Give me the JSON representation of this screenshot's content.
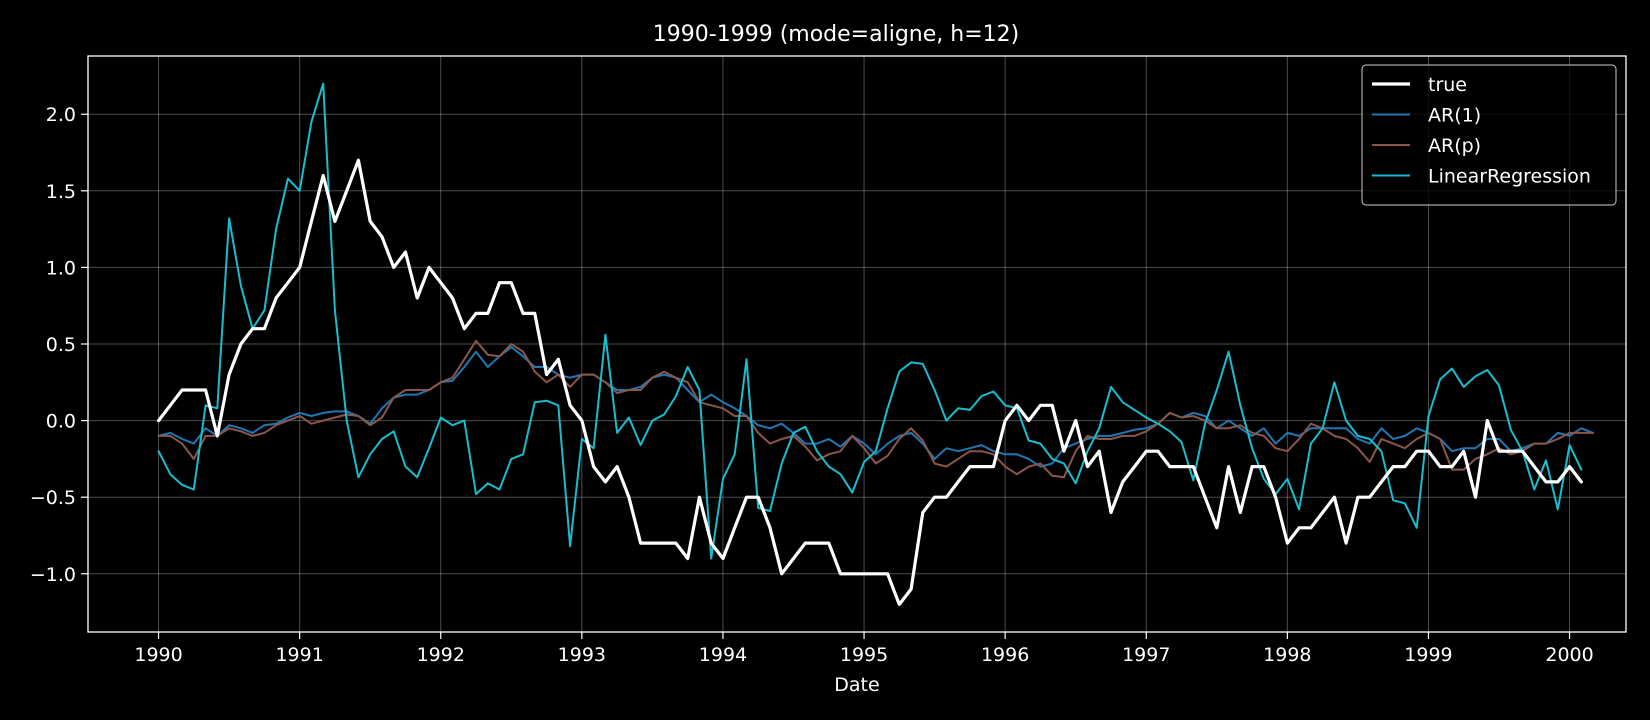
{
  "chart_data": {
    "type": "line",
    "title": "1990-1999 (mode=aligne, h=12)",
    "xlabel": "Date",
    "ylabel": "",
    "xlim": [
      1989.5,
      2000.4
    ],
    "ylim": [
      -1.38,
      2.38
    ],
    "x_ticks": [
      1990,
      1991,
      1992,
      1993,
      1994,
      1995,
      1996,
      1997,
      1998,
      1999,
      2000
    ],
    "x_tick_labels": [
      "1990",
      "1991",
      "1992",
      "1993",
      "1994",
      "1995",
      "1996",
      "1997",
      "1998",
      "1999",
      "2000"
    ],
    "y_ticks": [
      -1.0,
      -0.5,
      0.0,
      0.5,
      1.0,
      1.5,
      2.0
    ],
    "y_tick_labels": [
      "−1.0",
      "−0.5",
      "0.0",
      "0.5",
      "1.0",
      "1.5",
      "2.0"
    ],
    "grid": true,
    "legend_position": "top-right",
    "x_start": 1990,
    "x_step_months": 1,
    "series": [
      {
        "name": "true",
        "color": "#ffffff",
        "values": [
          0.0,
          0.1,
          0.2,
          0.2,
          0.2,
          -0.1,
          0.3,
          0.5,
          0.6,
          0.6,
          0.8,
          0.9,
          1.0,
          1.3,
          1.6,
          1.3,
          1.5,
          1.7,
          1.3,
          1.2,
          1.0,
          1.1,
          0.8,
          1.0,
          0.9,
          0.8,
          0.6,
          0.7,
          0.7,
          0.9,
          0.9,
          0.7,
          0.7,
          0.3,
          0.4,
          0.1,
          0.0,
          -0.3,
          -0.4,
          -0.3,
          -0.5,
          -0.8,
          -0.8,
          -0.8,
          -0.8,
          -0.9,
          -0.5,
          -0.8,
          -0.9,
          -0.7,
          -0.5,
          -0.5,
          -0.7,
          -1.0,
          -0.9,
          -0.8,
          -0.8,
          -0.8,
          -1.0,
          -1.0,
          -1.0,
          -1.0,
          -1.0,
          -1.2,
          -1.1,
          -0.6,
          -0.5,
          -0.5,
          -0.4,
          -0.3,
          -0.3,
          -0.3,
          0.0,
          0.1,
          0.0,
          0.1,
          0.1,
          -0.2,
          0.0,
          -0.3,
          -0.2,
          -0.6,
          -0.4,
          -0.3,
          -0.2,
          -0.2,
          -0.3,
          -0.3,
          -0.3,
          -0.5,
          -0.7,
          -0.3,
          -0.6,
          -0.3,
          -0.3,
          -0.5,
          -0.8,
          -0.7,
          -0.7,
          -0.6,
          -0.5,
          -0.8,
          -0.5,
          -0.5,
          -0.4,
          -0.3,
          -0.3,
          -0.2,
          -0.2,
          -0.3,
          -0.3,
          -0.2,
          -0.5,
          0.0,
          -0.2,
          -0.2,
          -0.2,
          -0.3,
          -0.4,
          -0.4,
          -0.3,
          -0.4
        ]
      },
      {
        "name": "AR(1)",
        "color": "#1f77b4",
        "values": [
          -0.1,
          -0.08,
          -0.12,
          -0.15,
          -0.05,
          -0.1,
          -0.03,
          -0.05,
          -0.08,
          -0.03,
          -0.02,
          0.02,
          0.05,
          0.03,
          0.05,
          0.06,
          0.06,
          0.03,
          -0.02,
          0.08,
          0.15,
          0.17,
          0.17,
          0.2,
          0.25,
          0.26,
          0.35,
          0.45,
          0.35,
          0.42,
          0.48,
          0.42,
          0.35,
          0.35,
          0.3,
          0.28,
          0.3,
          0.3,
          0.25,
          0.2,
          0.2,
          0.22,
          0.28,
          0.3,
          0.28,
          0.2,
          0.12,
          0.17,
          0.12,
          0.08,
          0.03,
          -0.03,
          -0.05,
          -0.02,
          -0.08,
          -0.15,
          -0.15,
          -0.12,
          -0.17,
          -0.1,
          -0.15,
          -0.22,
          -0.15,
          -0.1,
          -0.08,
          -0.15,
          -0.25,
          -0.18,
          -0.2,
          -0.18,
          -0.16,
          -0.2,
          -0.22,
          -0.22,
          -0.25,
          -0.3,
          -0.28,
          -0.18,
          -0.15,
          -0.12,
          -0.1,
          -0.1,
          -0.08,
          -0.06,
          -0.05,
          -0.02,
          0.05,
          0.02,
          0.05,
          0.03,
          -0.05,
          0.0,
          -0.05,
          -0.1,
          -0.05,
          -0.15,
          -0.08,
          -0.1,
          -0.05,
          -0.05,
          -0.05,
          -0.05,
          -0.12,
          -0.15,
          -0.05,
          -0.12,
          -0.1,
          -0.05,
          -0.08,
          -0.12,
          -0.2,
          -0.18,
          -0.18,
          -0.12,
          -0.12,
          -0.2,
          -0.18,
          -0.15,
          -0.15,
          -0.08,
          -0.1,
          -0.05,
          -0.08
        ]
      },
      {
        "name": "AR(p)",
        "color": "#8c564b",
        "values": [
          -0.1,
          -0.1,
          -0.15,
          -0.25,
          -0.1,
          -0.1,
          -0.05,
          -0.07,
          -0.1,
          -0.08,
          -0.03,
          0.0,
          0.03,
          -0.02,
          0.0,
          0.02,
          0.04,
          0.03,
          -0.03,
          0.02,
          0.15,
          0.2,
          0.2,
          0.2,
          0.25,
          0.28,
          0.4,
          0.52,
          0.43,
          0.42,
          0.5,
          0.45,
          0.32,
          0.25,
          0.3,
          0.22,
          0.3,
          0.3,
          0.25,
          0.18,
          0.2,
          0.2,
          0.28,
          0.32,
          0.28,
          0.25,
          0.12,
          0.1,
          0.08,
          0.03,
          0.03,
          -0.08,
          -0.15,
          -0.12,
          -0.1,
          -0.17,
          -0.26,
          -0.22,
          -0.2,
          -0.1,
          -0.18,
          -0.28,
          -0.23,
          -0.12,
          -0.05,
          -0.13,
          -0.28,
          -0.3,
          -0.25,
          -0.2,
          -0.2,
          -0.22,
          -0.3,
          -0.35,
          -0.3,
          -0.28,
          -0.36,
          -0.37,
          -0.2,
          -0.1,
          -0.12,
          -0.12,
          -0.1,
          -0.1,
          -0.07,
          -0.02,
          0.05,
          0.02,
          0.03,
          0.0,
          -0.05,
          -0.05,
          -0.03,
          -0.08,
          -0.1,
          -0.18,
          -0.2,
          -0.12,
          -0.02,
          -0.05,
          -0.1,
          -0.12,
          -0.18,
          -0.27,
          -0.12,
          -0.15,
          -0.18,
          -0.12,
          -0.08,
          -0.12,
          -0.32,
          -0.32,
          -0.25,
          -0.22,
          -0.18,
          -0.22,
          -0.2,
          -0.15,
          -0.15,
          -0.12,
          -0.08,
          -0.08,
          -0.08
        ]
      },
      {
        "name": "LinearRegression",
        "color": "#17becf",
        "values": [
          -0.2,
          -0.35,
          -0.42,
          -0.45,
          0.1,
          0.08,
          1.32,
          0.88,
          0.6,
          0.72,
          1.25,
          1.58,
          1.5,
          1.95,
          2.2,
          0.72,
          0.0,
          -0.37,
          -0.22,
          -0.12,
          -0.07,
          -0.3,
          -0.37,
          -0.18,
          0.02,
          -0.03,
          0.0,
          -0.48,
          -0.41,
          -0.45,
          -0.25,
          -0.22,
          0.12,
          0.13,
          0.1,
          -0.82,
          -0.12,
          -0.18,
          0.56,
          -0.08,
          0.02,
          -0.16,
          0.0,
          0.04,
          0.16,
          0.35,
          0.2,
          -0.9,
          -0.38,
          -0.22,
          0.4,
          -0.57,
          -0.59,
          -0.28,
          -0.08,
          -0.04,
          -0.2,
          -0.3,
          -0.35,
          -0.47,
          -0.27,
          -0.2,
          0.08,
          0.32,
          0.38,
          0.37,
          0.2,
          0.0,
          0.08,
          0.07,
          0.16,
          0.19,
          0.1,
          0.08,
          -0.13,
          -0.15,
          -0.25,
          -0.28,
          -0.41,
          -0.2,
          -0.05,
          0.22,
          0.12,
          0.07,
          0.02,
          -0.02,
          -0.07,
          -0.14,
          -0.39,
          -0.02,
          0.2,
          0.45,
          0.1,
          -0.18,
          -0.38,
          -0.48,
          -0.38,
          -0.58,
          -0.15,
          -0.05,
          0.25,
          0.0,
          -0.1,
          -0.12,
          -0.2,
          -0.52,
          -0.54,
          -0.7,
          0.03,
          0.27,
          0.34,
          0.22,
          0.29,
          0.33,
          0.23,
          -0.06,
          -0.2,
          -0.45,
          -0.26,
          -0.58,
          -0.16,
          -0.32
        ]
      }
    ]
  }
}
